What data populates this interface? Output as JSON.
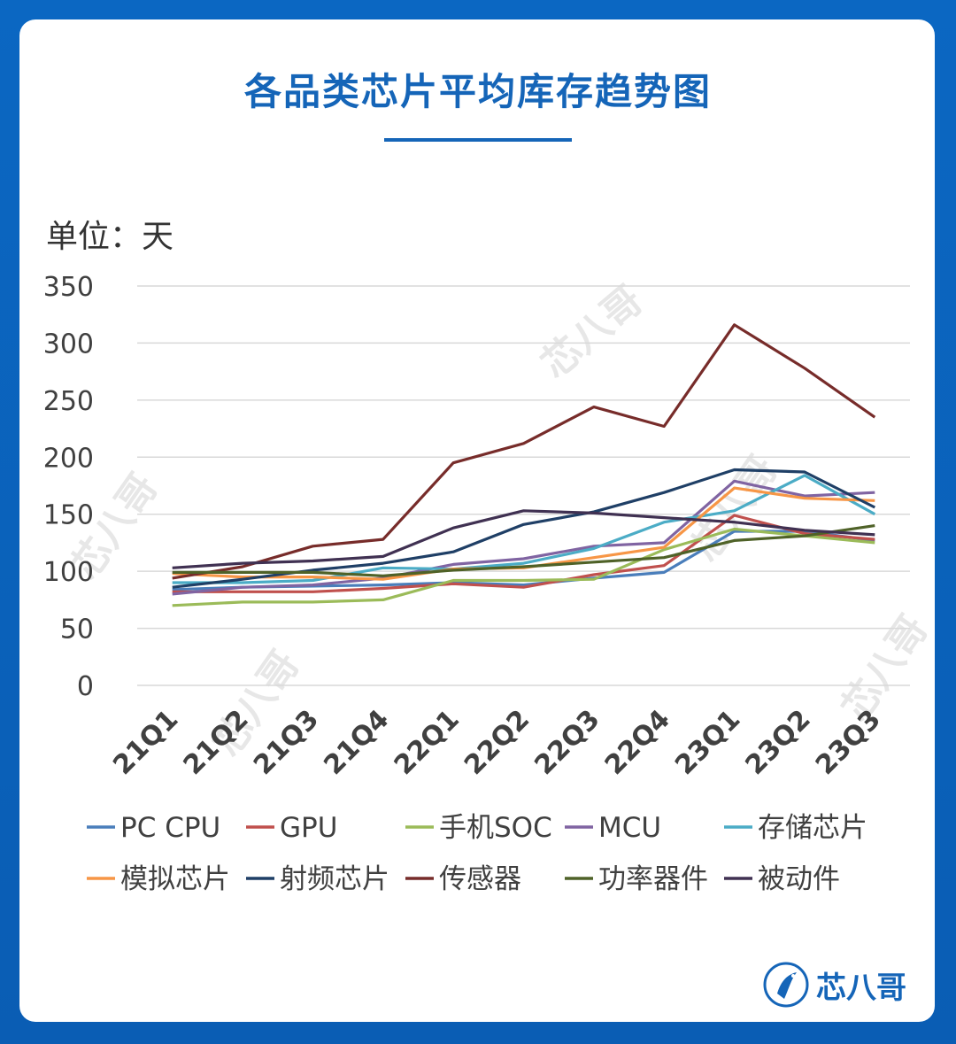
{
  "title": "各品类芯片平均库存趋势图",
  "unit_label": "单位：天",
  "logo_text": "芯八哥",
  "watermark_text": "芯八哥",
  "chart_data": {
    "type": "line",
    "categories": [
      "21Q1",
      "21Q2",
      "21Q3",
      "21Q4",
      "22Q1",
      "22Q2",
      "22Q3",
      "22Q4",
      "23Q1",
      "23Q2",
      "23Q3"
    ],
    "ylim": [
      0,
      350
    ],
    "yticks": [
      0,
      50,
      100,
      150,
      200,
      250,
      300,
      350
    ],
    "grid": true,
    "legend_position": "bottom",
    "series": [
      {
        "name": "PC CPU",
        "color": "#4a7ebb",
        "values": [
          84,
          86,
          87,
          88,
          90,
          88,
          94,
          99,
          135,
          135,
          127
        ]
      },
      {
        "name": "GPU",
        "color": "#c0504d",
        "values": [
          82,
          82,
          82,
          85,
          89,
          86,
          97,
          105,
          149,
          133,
          128
        ]
      },
      {
        "name": "手机SOC",
        "color": "#9bbb59",
        "values": [
          70,
          73,
          73,
          75,
          92,
          92,
          93,
          119,
          137,
          131,
          125
        ]
      },
      {
        "name": "MCU",
        "color": "#8064a2",
        "values": [
          80,
          86,
          88,
          94,
          106,
          111,
          122,
          125,
          179,
          166,
          169
        ]
      },
      {
        "name": "存储芯片",
        "color": "#4bacc6",
        "values": [
          90,
          90,
          92,
          103,
          102,
          107,
          120,
          143,
          153,
          184,
          150
        ]
      },
      {
        "name": "模拟芯片",
        "color": "#f79646",
        "values": [
          98,
          95,
          95,
          93,
          102,
          103,
          112,
          121,
          173,
          164,
          162
        ]
      },
      {
        "name": "射频芯片",
        "color": "#1f3f66",
        "values": [
          86,
          93,
          101,
          107,
          117,
          141,
          152,
          169,
          189,
          187,
          156
        ]
      },
      {
        "name": "传感器",
        "color": "#772c2a",
        "values": [
          94,
          104,
          122,
          128,
          195,
          212,
          244,
          227,
          316,
          278,
          235
        ]
      },
      {
        "name": "功率器件",
        "color": "#4f6228",
        "values": [
          99,
          99,
          99,
          96,
          101,
          104,
          108,
          112,
          127,
          131,
          140
        ]
      },
      {
        "name": "被动件",
        "color": "#403152",
        "values": [
          103,
          107,
          109,
          113,
          138,
          153,
          151,
          147,
          143,
          136,
          132
        ]
      }
    ]
  }
}
